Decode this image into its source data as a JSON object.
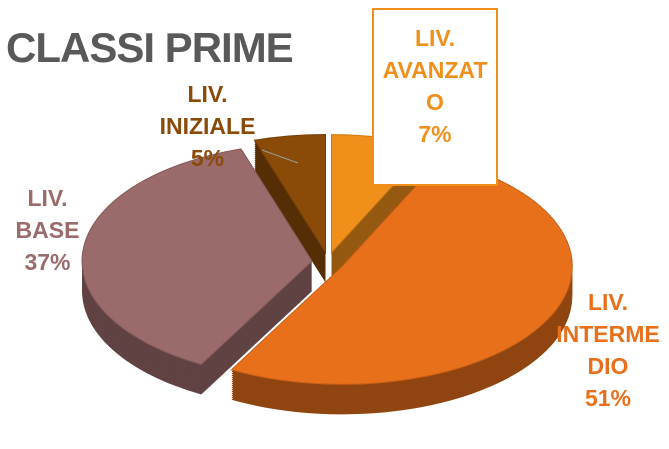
{
  "chart_data": {
    "type": "pie",
    "title": "CLASSI PRIME",
    "categories": [
      "LIV. AVANZATO",
      "LIV. INTERMEDIO",
      "LIV. BASE",
      "LIV. INIZIALE"
    ],
    "values": [
      7,
      51,
      37,
      5
    ],
    "value_labels": [
      "7%",
      "51%",
      "37%",
      "5%"
    ],
    "colors": [
      "#f0901a",
      "#e8701a",
      "#9b6a6a",
      "#8a4a08"
    ]
  }
}
